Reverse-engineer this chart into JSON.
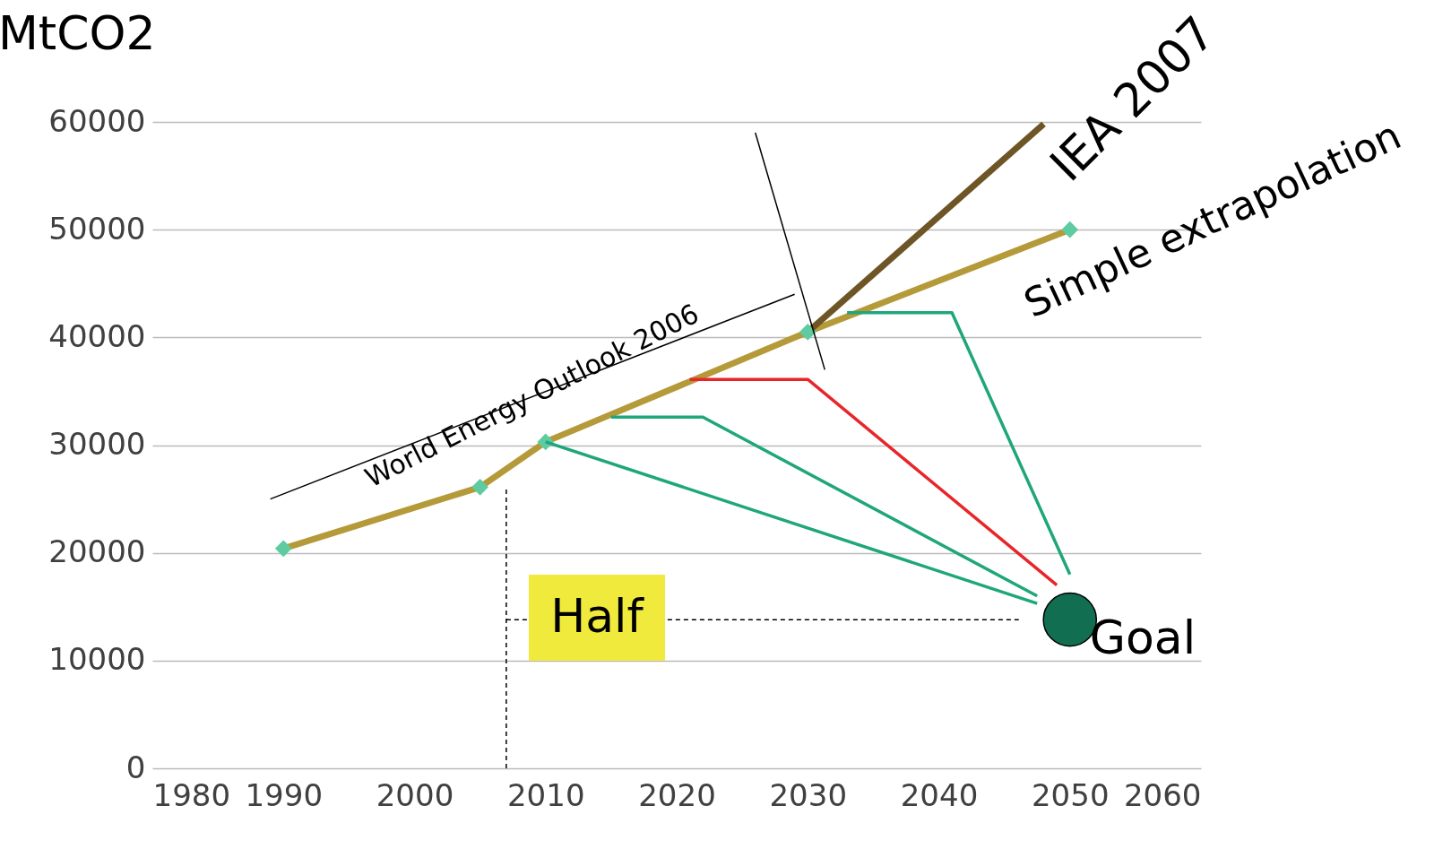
{
  "chart_data": {
    "type": "line",
    "ylabel": "MtCO2",
    "xlim": [
      1980,
      2060
    ],
    "xticks": [
      1980,
      1990,
      2000,
      2010,
      2020,
      2030,
      2040,
      2050,
      2060
    ],
    "ylim": [
      0,
      60000
    ],
    "yticks": [
      0,
      10000,
      20000,
      30000,
      40000,
      50000,
      60000
    ],
    "grid": "y",
    "series": [
      {
        "name": "Simple extrapolation",
        "color": "#b59a3a",
        "marker": "none",
        "x": [
          1990,
          2005,
          2010,
          2030,
          2050
        ],
        "values": [
          20400,
          26100,
          30300,
          40500,
          50000
        ]
      },
      {
        "name": "IEA 2007",
        "color": "#6e5525",
        "marker": "none",
        "x": [
          2030,
          2048
        ],
        "values": [
          40500,
          59800
        ]
      },
      {
        "type": "scatter",
        "color": "#5ecba1",
        "marker": "diamond",
        "x": [
          1990,
          2005,
          2010,
          2030,
          2050
        ],
        "values": [
          20400,
          26100,
          30300,
          40500,
          50000
        ]
      },
      {
        "color": "#1fa67a",
        "marker": "none",
        "x": [
          2010,
          2047.5
        ],
        "values": [
          30300,
          15300
        ]
      },
      {
        "color": "#1fa67a",
        "marker": "none",
        "x": [
          2015,
          2022,
          2047.5
        ],
        "values": [
          32600,
          32600,
          16000
        ]
      },
      {
        "color": "#e8262a",
        "marker": "none",
        "x": [
          2021,
          2030,
          2049
        ],
        "values": [
          36100,
          36100,
          17000
        ]
      },
      {
        "color": "#1fa67a",
        "marker": "none",
        "x": [
          2033,
          2041,
          2050
        ],
        "values": [
          42300,
          42300,
          18000
        ]
      },
      {
        "color": "#000000",
        "marker": "none",
        "x": [
          2026,
          2031.3
        ],
        "values": [
          59000,
          37000
        ]
      },
      {
        "color": "#000000",
        "marker": "none",
        "x": [
          1989,
          2029
        ],
        "values": [
          25000,
          44000
        ]
      },
      {
        "color": "#000000",
        "marker": "none",
        "line_style": "dashed",
        "x": [
          2007,
          2046.1
        ],
        "values": [
          13800,
          13800
        ]
      },
      {
        "color": "#000000",
        "marker": "none",
        "line_style": "dashed",
        "x": [
          2007,
          2007
        ],
        "values": [
          0,
          26000
        ]
      },
      {
        "type": "scatter",
        "color": "#126e51",
        "marker": "circle",
        "x": [
          2050
        ],
        "values": [
          13800
        ]
      }
    ],
    "annotations": [
      {
        "text": "World Energy Outlook 2006",
        "x": 2009,
        "y": 34500
      },
      "Half",
      {
        "text": "Goal",
        "x": 2051.5,
        "y": 12000
      }
    ]
  }
}
